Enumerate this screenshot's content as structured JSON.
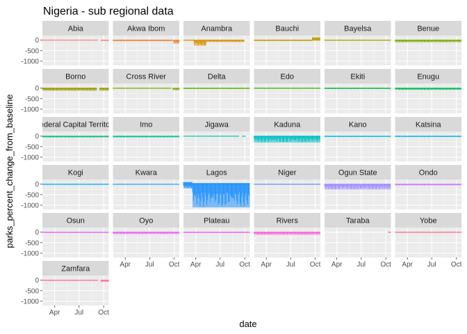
{
  "chart_data": {
    "type": "line",
    "title": "Nigeria - sub regional data",
    "xlabel": "date",
    "ylabel": "parks_percent_change_from_baseline",
    "x_ticks": [
      "Apr",
      "Jul",
      "Oct"
    ],
    "x_tick_dates": [
      "2020-04-01",
      "2020-07-01",
      "2020-10-01"
    ],
    "xlim": [
      "2020-02-15",
      "2020-10-20"
    ],
    "y_ticks": [
      0,
      -500,
      -1000
    ],
    "y_tick_labels": [
      "0",
      "-500",
      "-1000"
    ],
    "ylim": [
      -1200,
      220
    ],
    "layout": "facet_wrap, 6 columns",
    "legend": "none",
    "panels": [
      {
        "name": "Abia",
        "color": "#F8766D",
        "segments": [
          {
            "start": "2020-02-15",
            "end": "2020-09-10",
            "min": -10,
            "max": 5
          },
          {
            "start": "2020-09-20",
            "end": "2020-10-20",
            "min": -40,
            "max": 5
          }
        ]
      },
      {
        "name": "Akwa Ibom",
        "color": "#EA8331",
        "segments": [
          {
            "start": "2020-02-15",
            "end": "2020-09-25",
            "min": -50,
            "max": 10
          },
          {
            "start": "2020-09-28",
            "end": "2020-10-20",
            "min": -170,
            "max": 0
          }
        ]
      },
      {
        "name": "Anambra",
        "color": "#D89000",
        "segments": [
          {
            "start": "2020-02-15",
            "end": "2020-03-25",
            "min": -30,
            "max": 10
          },
          {
            "start": "2020-03-25",
            "end": "2020-05-10",
            "min": -260,
            "max": 0
          },
          {
            "start": "2020-05-10",
            "end": "2020-09-30",
            "min": -90,
            "max": 10
          }
        ]
      },
      {
        "name": "Bauchi",
        "color": "#C09B00",
        "segments": [
          {
            "start": "2020-02-15",
            "end": "2020-09-20",
            "min": -40,
            "max": 20
          },
          {
            "start": "2020-09-20",
            "end": "2020-10-20",
            "min": -20,
            "max": 130
          }
        ]
      },
      {
        "name": "Bayelsa",
        "color": "#A3A500",
        "segments": [
          {
            "start": "2020-02-15",
            "end": "2020-10-20",
            "min": -30,
            "max": 10
          }
        ]
      },
      {
        "name": "Benue",
        "color": "#7CAE00",
        "segments": [
          {
            "start": "2020-02-15",
            "end": "2020-10-20",
            "min": -100,
            "max": 10
          }
        ]
      },
      {
        "name": "Borno",
        "color": "#9A9A00",
        "segments": [
          {
            "start": "2020-02-15",
            "end": "2020-09-05",
            "min": -120,
            "max": 10
          },
          {
            "start": "2020-09-15",
            "end": "2020-10-20",
            "min": -120,
            "max": 10
          }
        ]
      },
      {
        "name": "Cross River",
        "color": "#7CAE00",
        "segments": [
          {
            "start": "2020-02-15",
            "end": "2020-09-20",
            "min": -30,
            "max": 10
          },
          {
            "start": "2020-09-25",
            "end": "2020-10-20",
            "min": -100,
            "max": 0
          }
        ]
      },
      {
        "name": "Delta",
        "color": "#5BB300",
        "segments": [
          {
            "start": "2020-02-15",
            "end": "2020-10-20",
            "min": -40,
            "max": 10
          }
        ]
      },
      {
        "name": "Edo",
        "color": "#39B600",
        "segments": [
          {
            "start": "2020-02-15",
            "end": "2020-10-20",
            "min": -30,
            "max": 10
          }
        ]
      },
      {
        "name": "Ekiti",
        "color": "#00BA38",
        "segments": [
          {
            "start": "2020-02-15",
            "end": "2020-10-20",
            "min": -40,
            "max": 10
          }
        ]
      },
      {
        "name": "Enugu",
        "color": "#00BD5C",
        "segments": [
          {
            "start": "2020-02-15",
            "end": "2020-10-20",
            "min": -80,
            "max": 10
          }
        ]
      },
      {
        "name": "Federal Capital Territory",
        "color": "#00BF7D",
        "segments": [
          {
            "start": "2020-02-15",
            "end": "2020-10-20",
            "min": -60,
            "max": 10
          }
        ]
      },
      {
        "name": "Imo",
        "color": "#00C19A",
        "segments": [
          {
            "start": "2020-02-15",
            "end": "2020-10-20",
            "min": -60,
            "max": 10
          }
        ]
      },
      {
        "name": "Jigawa",
        "color": "#00C0B5",
        "segments": [
          {
            "start": "2020-02-15",
            "end": "2020-09-10",
            "min": -20,
            "max": 10
          },
          {
            "start": "2020-09-20",
            "end": "2020-10-05",
            "min": -20,
            "max": 10
          }
        ]
      },
      {
        "name": "Kaduna",
        "color": "#00BFC4",
        "segments": [
          {
            "start": "2020-02-15",
            "end": "2020-10-20",
            "min": -300,
            "max": 10
          }
        ]
      },
      {
        "name": "Kano",
        "color": "#00BAE0",
        "segments": [
          {
            "start": "2020-02-15",
            "end": "2020-10-20",
            "min": -40,
            "max": 10
          }
        ]
      },
      {
        "name": "Katsina",
        "color": "#00B4EF",
        "segments": [
          {
            "start": "2020-02-15",
            "end": "2020-10-20",
            "min": -40,
            "max": 10
          }
        ]
      },
      {
        "name": "Kogi",
        "color": "#00A9FF",
        "segments": [
          {
            "start": "2020-02-15",
            "end": "2020-10-20",
            "min": -30,
            "max": 10
          }
        ]
      },
      {
        "name": "Kwara",
        "color": "#35A2FF",
        "segments": [
          {
            "start": "2020-02-15",
            "end": "2020-10-20",
            "min": -30,
            "max": 10
          }
        ]
      },
      {
        "name": "Lagos",
        "color": "#1E90FF",
        "segments": [
          {
            "start": "2020-02-15",
            "end": "2020-03-20",
            "min": -200,
            "max": 100
          },
          {
            "start": "2020-03-20",
            "end": "2020-10-20",
            "min": -1100,
            "max": 50
          }
        ]
      },
      {
        "name": "Niger",
        "color": "#7B8CFF",
        "segments": [
          {
            "start": "2020-02-15",
            "end": "2020-10-20",
            "min": -30,
            "max": 10
          }
        ]
      },
      {
        "name": "Ogun State",
        "color": "#9F8CFF",
        "segments": [
          {
            "start": "2020-02-15",
            "end": "2020-10-20",
            "min": -250,
            "max": 10
          }
        ]
      },
      {
        "name": "Ondo",
        "color": "#C77CFF",
        "segments": [
          {
            "start": "2020-02-15",
            "end": "2020-10-20",
            "min": -60,
            "max": 10
          }
        ]
      },
      {
        "name": "Osun",
        "color": "#DC71FA",
        "segments": [
          {
            "start": "2020-02-15",
            "end": "2020-10-20",
            "min": -40,
            "max": 10
          }
        ]
      },
      {
        "name": "Oyo",
        "color": "#E76BF3",
        "segments": [
          {
            "start": "2020-02-15",
            "end": "2020-10-20",
            "min": -90,
            "max": 20
          }
        ]
      },
      {
        "name": "Plateau",
        "color": "#F066EA",
        "segments": [
          {
            "start": "2020-02-15",
            "end": "2020-10-20",
            "min": -40,
            "max": 10
          }
        ]
      },
      {
        "name": "Rivers",
        "color": "#FA62DB",
        "segments": [
          {
            "start": "2020-02-15",
            "end": "2020-10-20",
            "min": -120,
            "max": 10
          }
        ]
      },
      {
        "name": "Taraba",
        "color": "#FF62BC",
        "segments": [
          {
            "start": "2020-10-10",
            "end": "2020-10-20",
            "min": -30,
            "max": 10
          }
        ]
      },
      {
        "name": "Yobe",
        "color": "#FF6C91",
        "segments": [
          {
            "start": "2020-02-15",
            "end": "2020-10-20",
            "min": -30,
            "max": 10
          }
        ]
      },
      {
        "name": "Zamfara",
        "color": "#FF6A98",
        "segments": [
          {
            "start": "2020-02-15",
            "end": "2020-09-10",
            "min": -30,
            "max": 10
          },
          {
            "start": "2020-09-20",
            "end": "2020-10-20",
            "min": -80,
            "max": 10
          }
        ]
      }
    ]
  }
}
